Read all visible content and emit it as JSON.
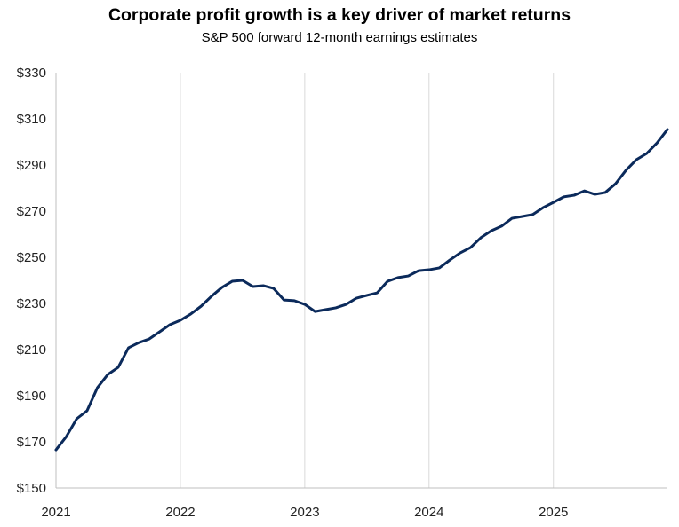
{
  "chart_data": {
    "type": "line",
    "title": "Corporate profit growth is a key driver of market returns",
    "subtitle": "S&P 500 forward 12-month earnings estimates",
    "xlabel": "",
    "ylabel": "",
    "ylim": [
      150,
      330
    ],
    "xlim": [
      "2021-01",
      "2025-12"
    ],
    "y_ticks": [
      "$150",
      "$170",
      "$190",
      "$210",
      "$230",
      "$250",
      "$270",
      "$290",
      "$310",
      "$330"
    ],
    "y_tick_values": [
      150,
      170,
      190,
      210,
      230,
      250,
      270,
      290,
      310,
      330
    ],
    "x_ticks": [
      "2021",
      "2022",
      "2023",
      "2024",
      "2025"
    ],
    "grid": "vertical gridlines at years",
    "line_color": "#0b2a5b",
    "grid_color": "#d9d9d9",
    "x": [
      "2021-01",
      "2021-02",
      "2021-03",
      "2021-04",
      "2021-05",
      "2021-06",
      "2021-07",
      "2021-08",
      "2021-09",
      "2021-10",
      "2021-11",
      "2021-12",
      "2022-01",
      "2022-02",
      "2022-03",
      "2022-04",
      "2022-05",
      "2022-06",
      "2022-07",
      "2022-08",
      "2022-09",
      "2022-10",
      "2022-11",
      "2022-12",
      "2023-01",
      "2023-02",
      "2023-03",
      "2023-04",
      "2023-05",
      "2023-06",
      "2023-07",
      "2023-08",
      "2023-09",
      "2023-10",
      "2023-11",
      "2023-12",
      "2024-01",
      "2024-02",
      "2024-03",
      "2024-04",
      "2024-05",
      "2024-06",
      "2024-07",
      "2024-08",
      "2024-09",
      "2024-10",
      "2024-11",
      "2024-12",
      "2025-01",
      "2025-02",
      "2025-03",
      "2025-04",
      "2025-05",
      "2025-06",
      "2025-07",
      "2025-08",
      "2025-09",
      "2025-10",
      "2025-11",
      "2025-12"
    ],
    "values": [
      166.5,
      172.3,
      180,
      183.5,
      193.5,
      199.2,
      202.3,
      210.8,
      213,
      214.6,
      217.7,
      220.8,
      222.7,
      225.4,
      228.8,
      233.1,
      236.9,
      239.6,
      240,
      237.3,
      237.7,
      236.5,
      231.5,
      231.2,
      229.6,
      226.5,
      227.3,
      228.1,
      229.6,
      232.3,
      233.5,
      234.6,
      239.6,
      241.2,
      241.9,
      244.2,
      244.6,
      245.4,
      248.8,
      251.9,
      254.2,
      258.5,
      261.5,
      263.5,
      266.9,
      267.7,
      268.5,
      271.5,
      273.8,
      276.2,
      276.9,
      278.8,
      277.3,
      278.1,
      281.9,
      287.7,
      292.3,
      295,
      299.6,
      305.4
    ]
  }
}
